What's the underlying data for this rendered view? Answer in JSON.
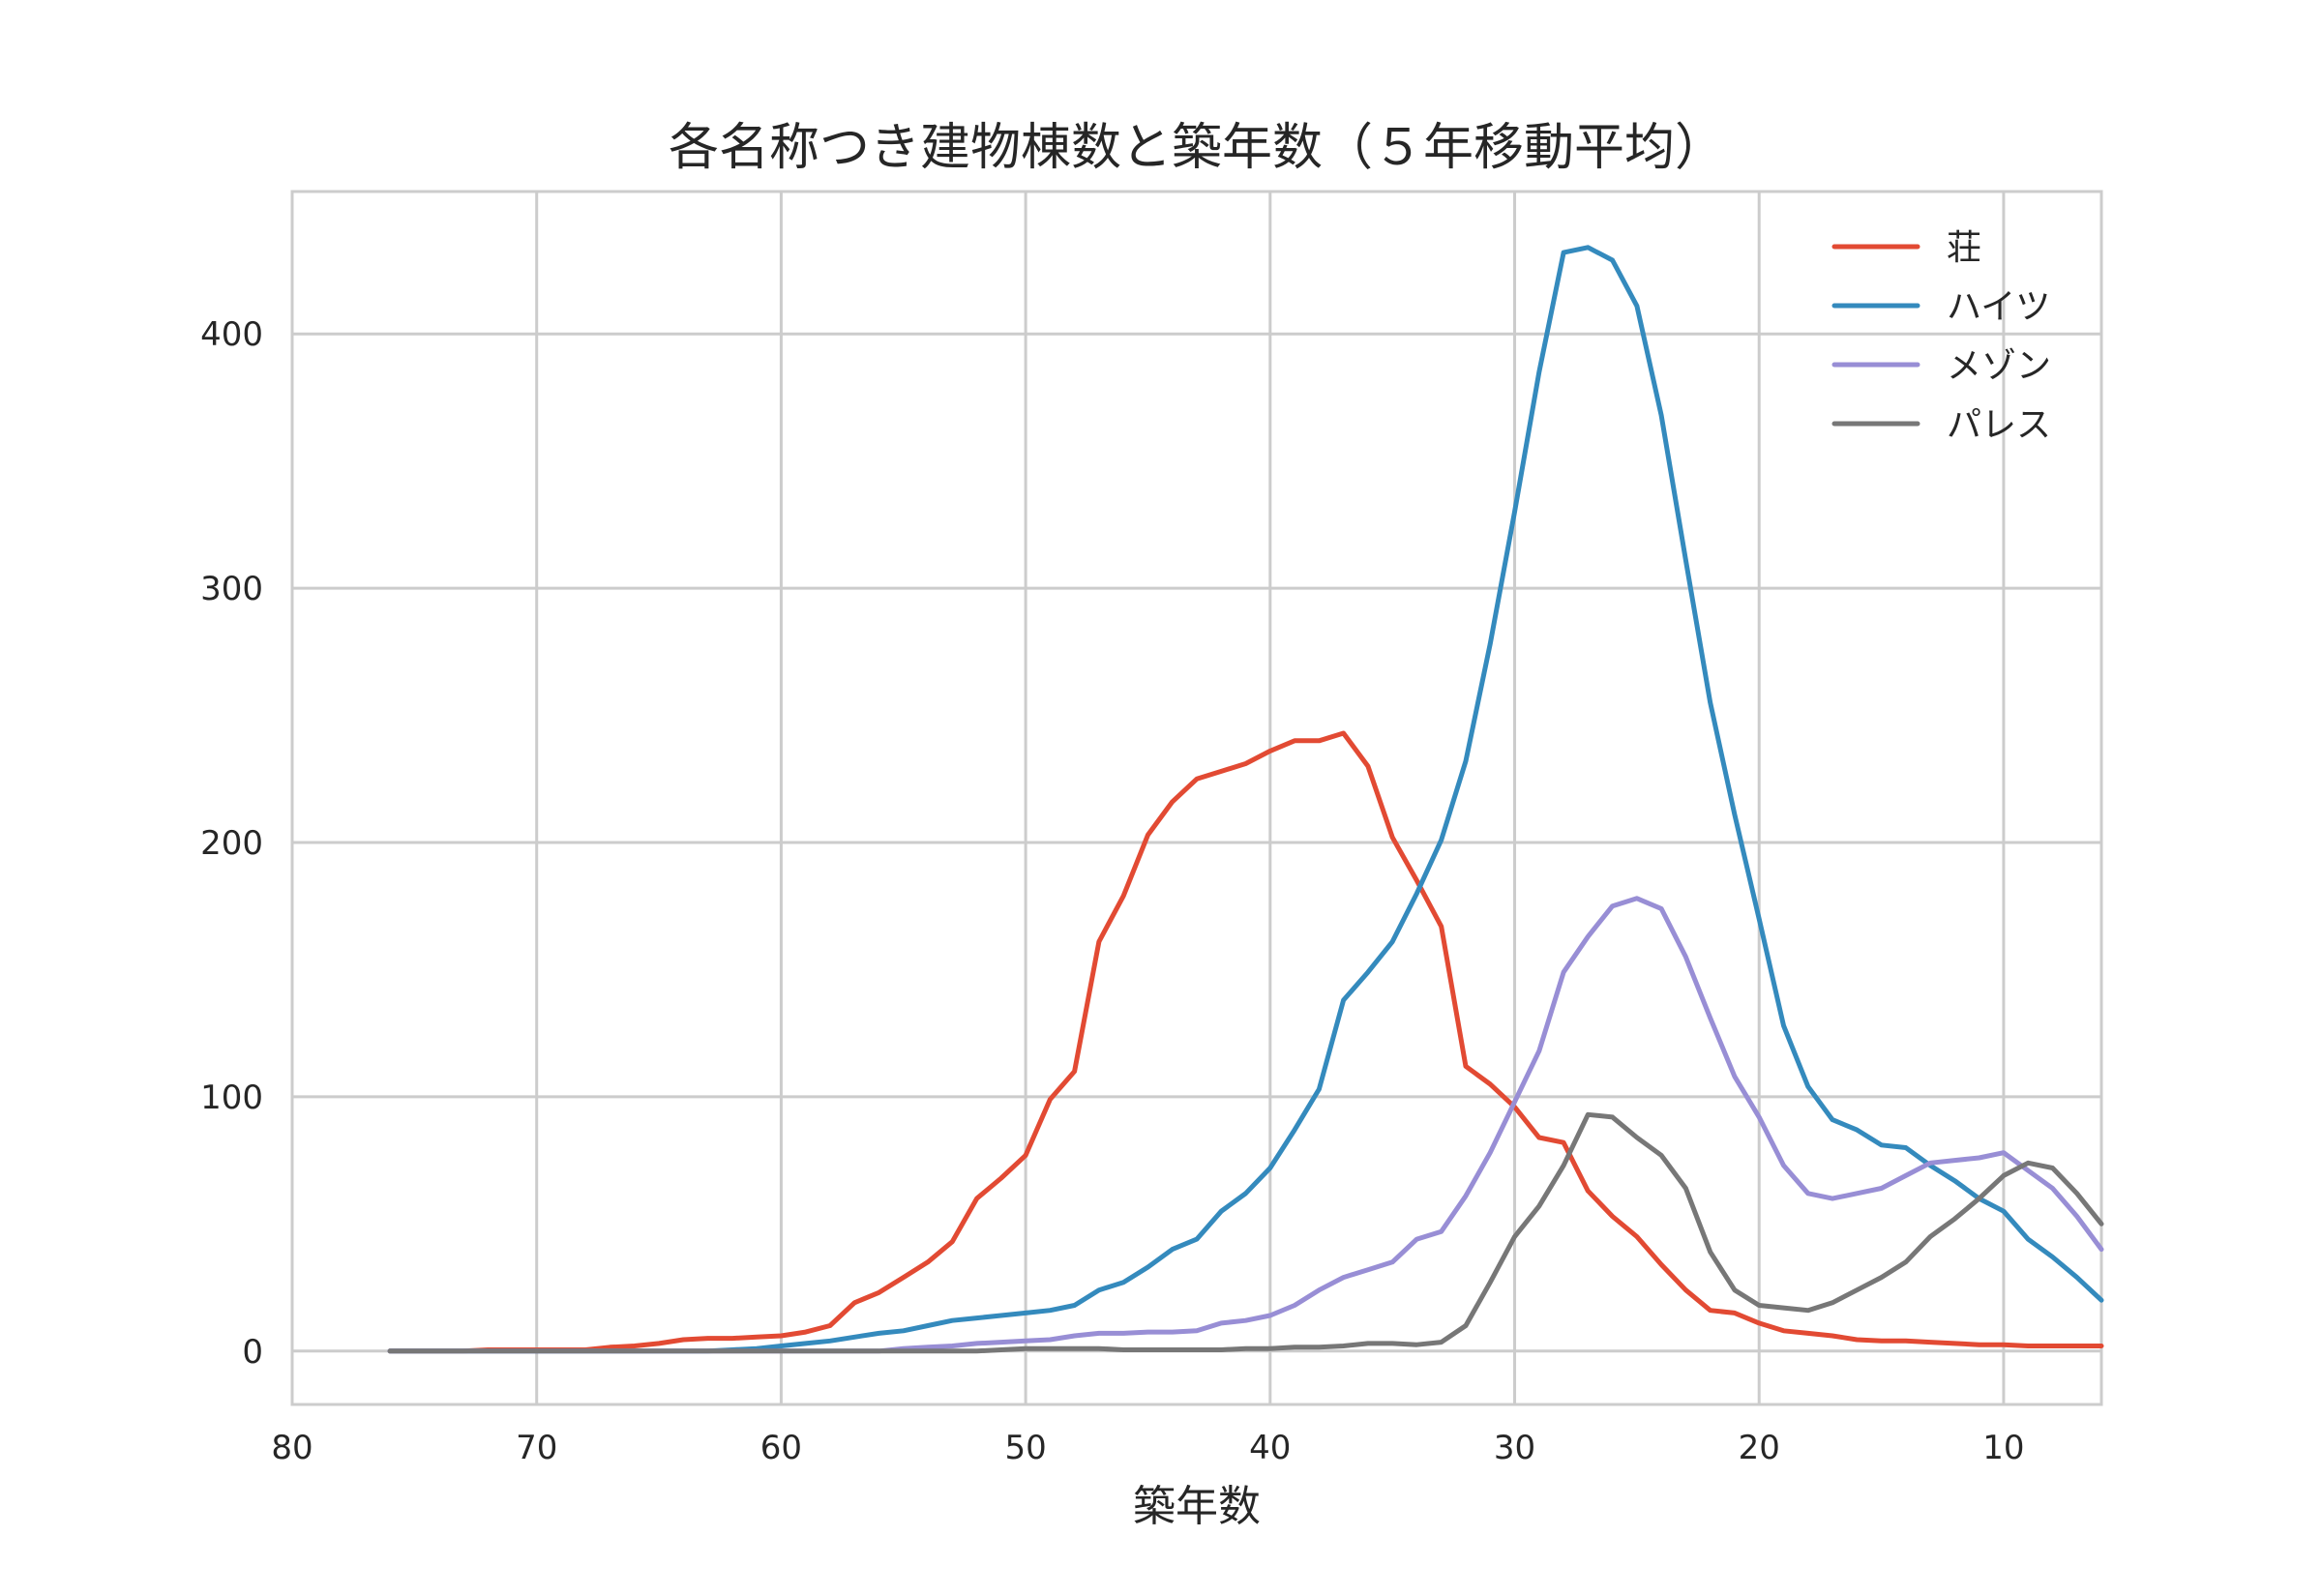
{
  "chart_data": {
    "type": "line",
    "title": "各名称つき建物棟数と築年数（５年移動平均）",
    "xlabel": "築年数",
    "ylabel": "",
    "xlim": [
      80,
      6
    ],
    "ylim": [
      -21,
      456
    ],
    "x_inverted": true,
    "grid": true,
    "legend_position": "top-right",
    "xticks": [
      80,
      70,
      60,
      50,
      40,
      30,
      20,
      10
    ],
    "yticks": [
      0,
      100,
      200,
      300,
      400
    ],
    "x": [
      76,
      75,
      74,
      73,
      72,
      71,
      70,
      69,
      68,
      67,
      66,
      65,
      64,
      63,
      62,
      61,
      60,
      59,
      58,
      57,
      56,
      55,
      54,
      53,
      52,
      51,
      50,
      49,
      48,
      47,
      46,
      45,
      44,
      43,
      42,
      41,
      40,
      39,
      38,
      37,
      36,
      35,
      34,
      33,
      32,
      31,
      30,
      29,
      28,
      27,
      26,
      25,
      24,
      23,
      22,
      21,
      20,
      19,
      18,
      17,
      16,
      15,
      14,
      13,
      12,
      11,
      10,
      9,
      8,
      7,
      6
    ],
    "series": [
      {
        "name": "荘",
        "color": "#E24A33",
        "values": [
          0,
          0,
          0,
          0,
          0.5,
          0.5,
          0.5,
          0.5,
          0.5,
          1.5,
          2,
          3,
          4.5,
          5,
          5,
          5.5,
          6,
          7.5,
          10,
          19,
          23,
          29,
          35,
          43,
          60,
          68,
          77,
          99,
          110,
          161,
          179,
          203,
          216,
          225,
          228,
          231,
          236,
          240,
          240,
          243,
          230,
          202,
          185,
          167,
          112,
          105,
          96,
          84,
          82,
          63,
          53,
          45,
          34,
          24,
          16,
          15,
          11,
          8,
          7,
          6,
          4.5,
          4,
          4,
          3.5,
          3,
          2.5,
          2.5,
          2,
          2,
          2,
          2
        ]
      },
      {
        "name": "ハイツ",
        "color": "#348ABD",
        "values": [
          0,
          0,
          0,
          0,
          0,
          0,
          0,
          0,
          0,
          0,
          0,
          0,
          0,
          0,
          0.5,
          1,
          2,
          3,
          4,
          5.5,
          7,
          8,
          10,
          12,
          13,
          14,
          15,
          16,
          18,
          24,
          27,
          33,
          40,
          44,
          55,
          62,
          72,
          87,
          103,
          138,
          149,
          161,
          180,
          201,
          232,
          278,
          330,
          385,
          432,
          434,
          429,
          411,
          368,
          311,
          255,
          211,
          170,
          128,
          104,
          91,
          87,
          81,
          80,
          73,
          67,
          60,
          55,
          44,
          37,
          29,
          20
        ]
      },
      {
        "name": "メゾン",
        "color": "#988ED5",
        "values": [
          0,
          0,
          0,
          0,
          0,
          0,
          0,
          0,
          0,
          0,
          0,
          0,
          0,
          0,
          0,
          0,
          0,
          0,
          0,
          0,
          0,
          1,
          1.5,
          2,
          3,
          3.5,
          4,
          4.5,
          6,
          7,
          7,
          7.5,
          7.5,
          8,
          11,
          12,
          14,
          18,
          24,
          29,
          32,
          35,
          44,
          47,
          61,
          78,
          98,
          118,
          149,
          163,
          175,
          178,
          174,
          155,
          131,
          108,
          92,
          73,
          62,
          60,
          62,
          64,
          69,
          74,
          75,
          76,
          78,
          71,
          64,
          53,
          40
        ]
      },
      {
        "name": "パレス",
        "color": "#777777",
        "values": [
          0,
          0,
          0,
          0,
          0,
          0,
          0,
          0,
          0,
          0,
          0,
          0,
          0,
          0,
          0,
          0,
          0,
          0,
          0,
          0,
          0,
          0,
          0,
          0,
          0,
          0.5,
          1,
          1,
          1,
          1,
          0.5,
          0.5,
          0.5,
          0.5,
          0.5,
          1,
          1,
          1.5,
          1.5,
          2,
          3,
          3,
          2.5,
          3.5,
          10,
          27,
          45,
          57,
          73,
          93,
          92,
          84,
          77,
          64,
          39,
          24,
          18,
          17,
          16,
          19,
          24,
          29,
          35,
          45,
          52,
          60,
          69,
          74,
          72,
          62,
          50
        ]
      }
    ]
  }
}
